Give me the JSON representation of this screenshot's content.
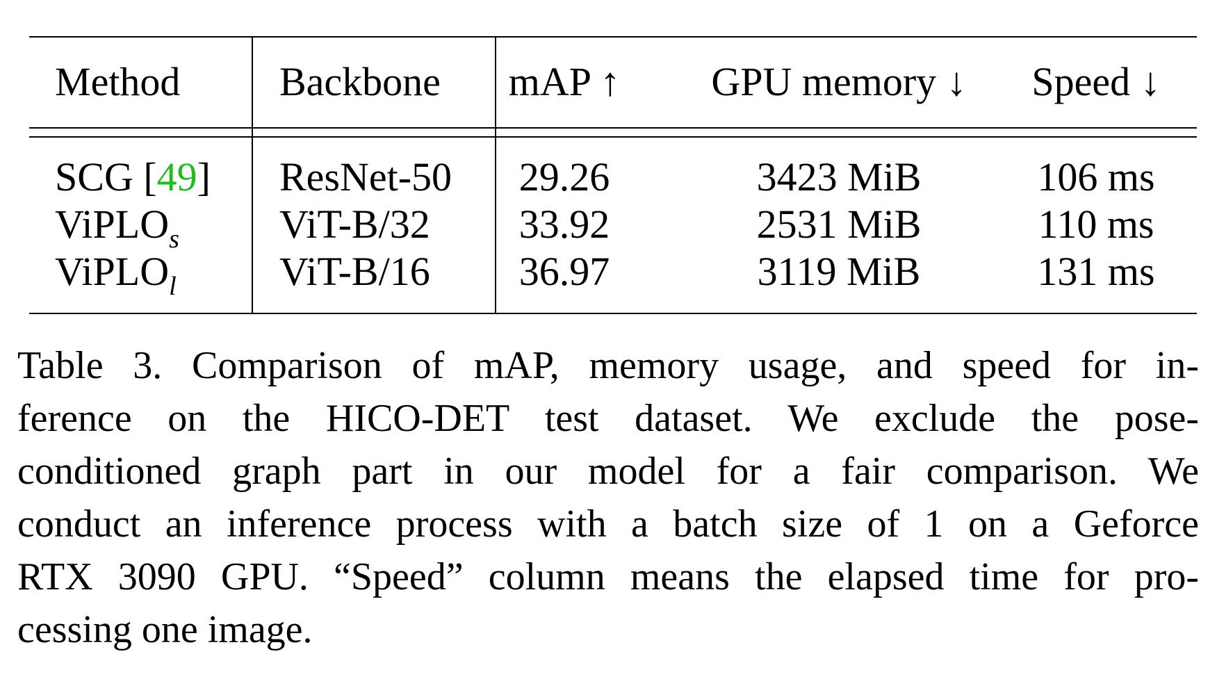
{
  "table": {
    "headers": [
      "Method",
      "Backbone",
      "mAP ↑",
      "GPU memory ↓",
      "Speed ↓"
    ],
    "rows": [
      {
        "method": "SCG [",
        "method_ref": "49",
        "method_end": "]",
        "method_sub": "",
        "backbone": "ResNet-50",
        "map": "29.26",
        "gpu": "3423 MiB",
        "speed": "106 ms"
      },
      {
        "method": "ViPLO",
        "method_ref": "",
        "method_end": "",
        "method_sub": "s",
        "backbone": "ViT-B/32",
        "map": "33.92",
        "gpu": "2531 MiB",
        "speed": "110 ms"
      },
      {
        "method": "ViPLO",
        "method_ref": "",
        "method_end": "",
        "method_sub": "l",
        "backbone": "ViT-B/16",
        "map": "36.97",
        "gpu": "3119 MiB",
        "speed": "131 ms"
      }
    ]
  },
  "caption": {
    "lines": [
      "Table 3. Comparison of mAP, memory usage, and speed for in-",
      "ference on the HICO-DET test dataset. We exclude the pose-",
      "conditioned graph part in our model for a fair comparison. We",
      "conduct an inference process with a batch size of 1 on a Geforce",
      "RTX 3090 GPU. “Speed” column means the elapsed time for pro-",
      "cessing one image."
    ]
  },
  "colors": {
    "reference_link": "#22bb22",
    "text": "#000000"
  }
}
